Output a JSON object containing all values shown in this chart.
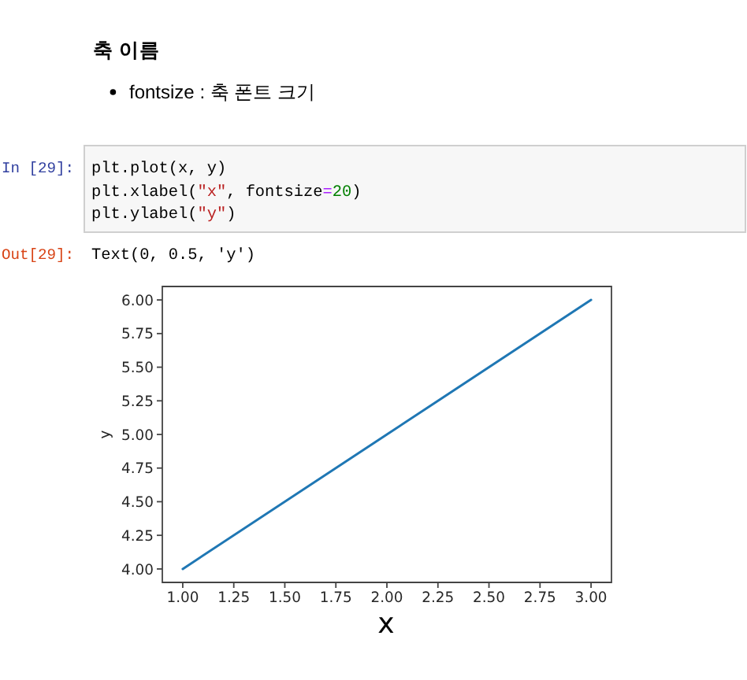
{
  "chart_data": {
    "type": "line",
    "title": "축 이름",
    "subtitle": "fontsize : 축 폰트 크기",
    "annotations": [
      "In [29]:",
      "plt.plot(x, y)",
      "plt.xlabel(\"x\", fontsize=20)",
      "plt.ylabel(\"y\")",
      "Out[29]:",
      "Text(0, 0.5, 'y')"
    ],
    "x": [
      1,
      2,
      3
    ],
    "values": [
      4,
      5,
      6
    ],
    "color": "#1f77b4",
    "xlabel": "x",
    "ylabel": "y",
    "xlim": [
      0.9,
      3.1
    ],
    "ylim": [
      3.9,
      6.1
    ],
    "xticks": [
      {
        "value": 1,
        "label": "1.00"
      },
      {
        "value": 1.25,
        "label": "1.25"
      },
      {
        "value": 1.5,
        "label": "1.50"
      },
      {
        "value": 1.75,
        "label": "1.75"
      },
      {
        "value": 2,
        "label": "2.00"
      },
      {
        "value": 2.25,
        "label": "2.25"
      },
      {
        "value": 2.5,
        "label": "2.50"
      },
      {
        "value": 2.75,
        "label": "2.75"
      },
      {
        "value": 3,
        "label": "3.00"
      }
    ],
    "yticks": [
      {
        "value": 4,
        "label": "4.00"
      },
      {
        "value": 4.25,
        "label": "4.25"
      },
      {
        "value": 4.5,
        "label": "4.50"
      },
      {
        "value": 4.75,
        "label": "4.75"
      },
      {
        "value": 5,
        "label": "5.00"
      },
      {
        "value": 5.25,
        "label": "5.25"
      },
      {
        "value": 5.5,
        "label": "5.50"
      },
      {
        "value": 5.75,
        "label": "5.75"
      },
      {
        "value": 6,
        "label": "6.00"
      }
    ]
  }
}
